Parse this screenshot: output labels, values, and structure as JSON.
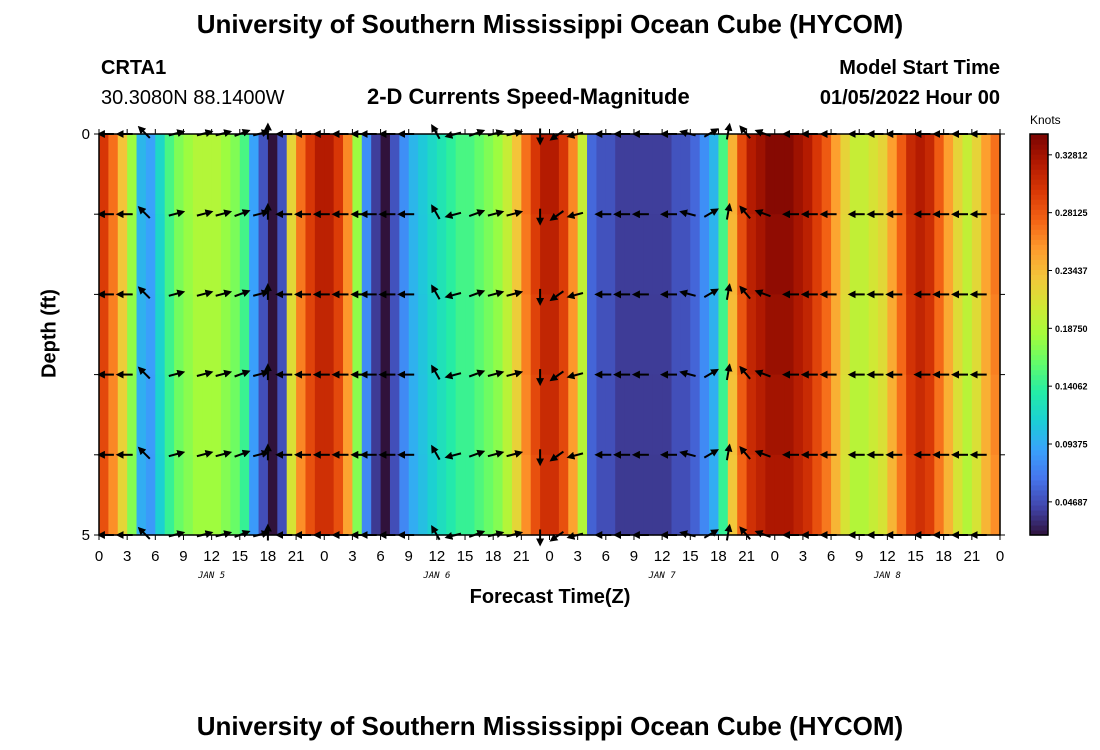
{
  "page": {
    "title_top": "University of Southern Mississippi Ocean Cube (HYCOM)",
    "title_bottom": "University of Southern Mississippi Ocean Cube (HYCOM)",
    "station": {
      "id": "CRTA1",
      "coords": "30.3080N  88.1400W"
    },
    "model": {
      "label": "Model Start Time",
      "value": "01/05/2022 Hour 00"
    }
  },
  "chart_data": {
    "type": "heatmap",
    "title": "2-D Currents Speed-Magnitude",
    "xlabel": "Forecast Time(Z)",
    "ylabel": "Depth (ft)",
    "y_ticks": [
      "0",
      "5"
    ],
    "ylim": [
      0,
      5
    ],
    "x_hours": [
      0,
      3,
      6,
      9,
      12,
      15,
      18,
      21,
      24,
      27,
      30,
      33,
      36,
      39,
      42,
      45,
      48,
      51,
      54,
      57,
      60,
      63,
      66,
      69,
      72,
      75,
      78,
      81,
      84,
      87,
      90,
      93,
      96
    ],
    "x_tick_labels": [
      "0",
      "3",
      "6",
      "9",
      "12",
      "15",
      "18",
      "21",
      "0",
      "3",
      "6",
      "9",
      "12",
      "15",
      "18",
      "21",
      "0",
      "3",
      "6",
      "9",
      "12",
      "15",
      "18",
      "21",
      "0",
      "3",
      "6",
      "9",
      "12",
      "15",
      "18",
      "21",
      "0"
    ],
    "date_labels": [
      {
        "hour": 12,
        "label": "JAN 5"
      },
      {
        "hour": 36,
        "label": "JAN 6"
      },
      {
        "hour": 60,
        "label": "JAN 7"
      },
      {
        "hour": 84,
        "label": "JAN 8"
      }
    ],
    "colorbar": {
      "units": "Knots",
      "min": 0.02,
      "max": 0.345,
      "tick_values": [
        0.32812,
        0.28125,
        0.23437,
        0.1875,
        0.14062,
        0.09375,
        0.04687
      ],
      "tick_labels": [
        "0.32812",
        "0.28125",
        "0.23437",
        "0.18750",
        "0.14062",
        "0.09375",
        "0.04687"
      ],
      "colors": [
        "#30123b",
        "#4145ab",
        "#4675ed",
        "#39a2fc",
        "#1bcfd4",
        "#24eca6",
        "#61fc6c",
        "#a4fc3b",
        "#d1e834",
        "#f3c63a",
        "#fe9b2d",
        "#f36315",
        "#d93806",
        "#b11901",
        "#7a0402"
      ]
    },
    "depth_levels": [
      0,
      1,
      2,
      3,
      4,
      5
    ],
    "speed_series": {
      "hours": [
        0,
        1,
        2,
        3,
        4,
        5,
        6,
        7,
        8,
        9,
        10,
        11,
        12,
        13,
        14,
        15,
        16,
        17,
        18,
        19,
        20,
        21,
        22,
        23,
        24,
        25,
        26,
        27,
        28,
        29,
        30,
        31,
        32,
        33,
        34,
        35,
        36,
        37,
        38,
        39,
        40,
        41,
        42,
        43,
        44,
        45,
        46,
        47,
        48,
        49,
        50,
        51,
        52,
        53,
        54,
        55,
        56,
        57,
        58,
        59,
        60,
        61,
        62,
        63,
        64,
        65,
        66,
        67,
        68,
        69,
        70,
        71,
        72,
        73,
        74,
        75,
        76,
        77,
        78,
        79,
        80,
        81,
        82,
        83,
        84,
        85,
        86,
        87,
        88,
        89,
        90,
        91,
        92,
        93,
        94,
        95,
        96
      ],
      "knots": [
        0.3,
        0.27,
        0.23,
        0.18,
        0.1,
        0.09,
        0.12,
        0.15,
        0.17,
        0.18,
        0.19,
        0.19,
        0.19,
        0.18,
        0.17,
        0.15,
        0.09,
        0.05,
        0.02,
        0.05,
        0.22,
        0.27,
        0.3,
        0.32,
        0.32,
        0.3,
        0.26,
        0.18,
        0.08,
        0.04,
        0.02,
        0.05,
        0.08,
        0.1,
        0.11,
        0.12,
        0.13,
        0.14,
        0.15,
        0.15,
        0.16,
        0.17,
        0.18,
        0.2,
        0.23,
        0.27,
        0.3,
        0.32,
        0.32,
        0.3,
        0.26,
        0.2,
        0.06,
        0.05,
        0.05,
        0.04,
        0.04,
        0.04,
        0.04,
        0.04,
        0.04,
        0.05,
        0.05,
        0.06,
        0.08,
        0.1,
        0.15,
        0.24,
        0.29,
        0.32,
        0.33,
        0.34,
        0.34,
        0.34,
        0.33,
        0.32,
        0.3,
        0.28,
        0.25,
        0.22,
        0.2,
        0.2,
        0.21,
        0.22,
        0.25,
        0.28,
        0.31,
        0.32,
        0.31,
        0.28,
        0.25,
        0.22,
        0.2,
        0.22,
        0.25,
        0.27,
        0.28
      ]
    },
    "vector_hours": [
      1,
      3,
      5,
      8,
      11,
      13,
      15,
      17,
      18,
      20,
      22,
      24,
      26,
      28,
      29,
      31,
      33,
      36,
      38,
      40,
      42,
      44,
      47,
      49,
      51,
      54,
      56,
      58,
      61,
      63,
      65,
      67,
      69,
      71,
      74,
      76,
      78,
      81,
      83,
      85,
      88,
      90,
      92,
      94
    ],
    "vector_directions_deg": [
      180,
      180,
      135,
      15,
      15,
      15,
      20,
      15,
      90,
      180,
      180,
      180,
      180,
      180,
      180,
      180,
      180,
      120,
      195,
      20,
      15,
      15,
      270,
      215,
      195,
      180,
      180,
      180,
      180,
      165,
      30,
      80,
      130,
      160,
      180,
      180,
      180,
      180,
      180,
      180,
      180,
      180,
      180,
      180
    ]
  }
}
